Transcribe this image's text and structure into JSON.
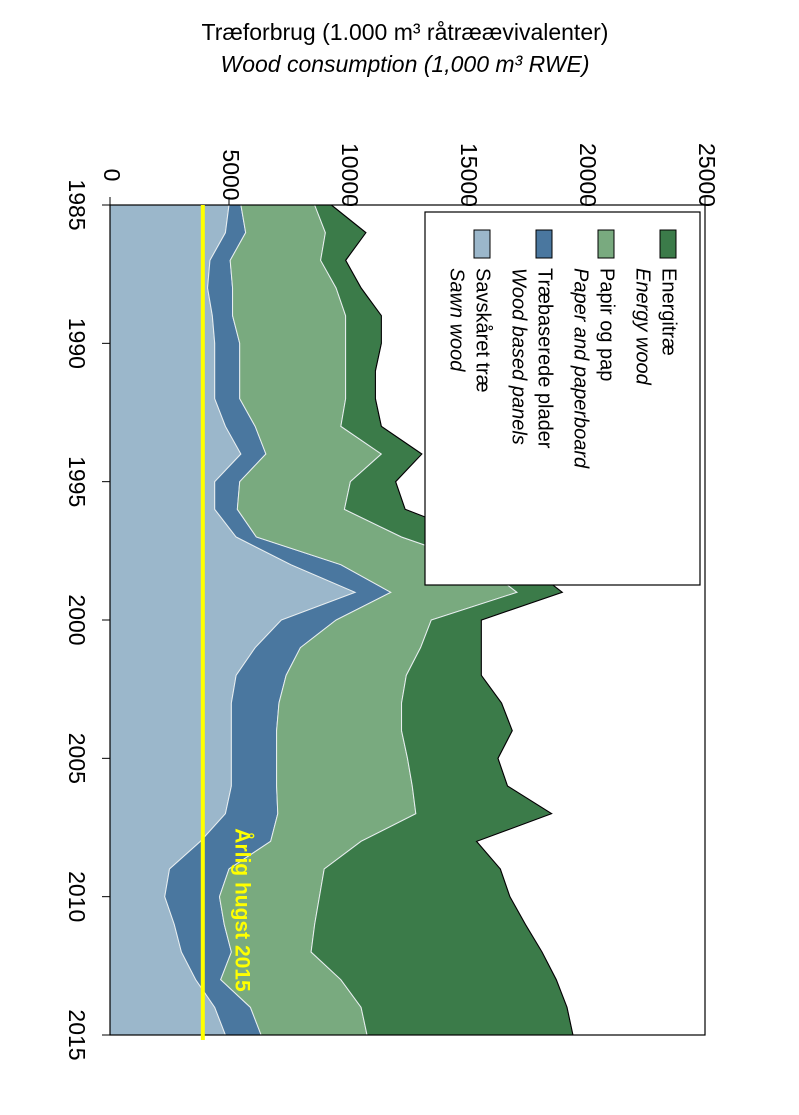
{
  "chart_data": {
    "type": "stacked-area",
    "title": "Træforbrug (1.000 m³ råtræævivalenter)",
    "subtitle": "Wood consumption (1,000 m³ RWE)",
    "x": [
      1985,
      1986,
      1987,
      1988,
      1989,
      1990,
      1991,
      1992,
      1993,
      1994,
      1995,
      1996,
      1997,
      1998,
      1999,
      2000,
      2001,
      2002,
      2003,
      2004,
      2005,
      2006,
      2007,
      2008,
      2009,
      2010,
      2011,
      2012,
      2013,
      2014,
      2015
    ],
    "xlim": [
      1985,
      2015
    ],
    "xticks": [
      1985,
      1990,
      1995,
      2000,
      2005,
      2010,
      2015
    ],
    "ylim": [
      0,
      25000
    ],
    "yticks": [
      0,
      5000,
      10000,
      15000,
      20000,
      25000
    ],
    "series": [
      {
        "name": "Energitræ",
        "name_en": "Energy wood",
        "color": "#3b7b49",
        "values": [
          700,
          1700,
          1050,
          1050,
          1500,
          1500,
          1250,
          1250,
          1700,
          1700,
          1900,
          2550,
          3150,
          1900,
          1900,
          2100,
          2550,
          3150,
          4200,
          4650,
          3800,
          4000,
          5700,
          4850,
          7400,
          8000,
          8850,
          9700,
          9050,
          8650,
          8650
        ]
      },
      {
        "name": "Papir og pap",
        "name_en": "Paper and paperboard",
        "color": "#79aa7f",
        "values": [
          3100,
          3350,
          3800,
          4350,
          4750,
          4450,
          4450,
          4450,
          3600,
          4850,
          4650,
          4500,
          6100,
          5900,
          5300,
          4000,
          5050,
          5050,
          5150,
          5250,
          5500,
          5700,
          5800,
          3800,
          4000,
          4200,
          3800,
          3350,
          5050,
          4650,
          4450
        ]
      },
      {
        "name": "Træbaserede plader",
        "name_en": "Wood based panels",
        "color": "#4a779f",
        "values": [
          500,
          850,
          850,
          1050,
          850,
          1050,
          1050,
          1050,
          1250,
          1050,
          1050,
          950,
          850,
          2100,
          1500,
          2300,
          1900,
          2100,
          2000,
          1900,
          1900,
          1900,
          2200,
          2950,
          2500,
          2300,
          2100,
          2100,
          1050,
          1500,
          1500
        ]
      },
      {
        "name": "Savskåret træ",
        "name_en": "Sawn wood",
        "color": "#9bb7cb",
        "values": [
          5000,
          4850,
          4200,
          4100,
          4300,
          4400,
          4400,
          4400,
          4850,
          5500,
          4400,
          4400,
          5300,
          7600,
          10300,
          7200,
          6100,
          5300,
          5100,
          5100,
          5100,
          5100,
          4850,
          3800,
          2500,
          2300,
          2700,
          3000,
          3600,
          4400,
          4850
        ]
      }
    ],
    "reference_line": {
      "value": 3900,
      "label": "Årlig hugst 2015",
      "color": "#ffff00"
    }
  }
}
